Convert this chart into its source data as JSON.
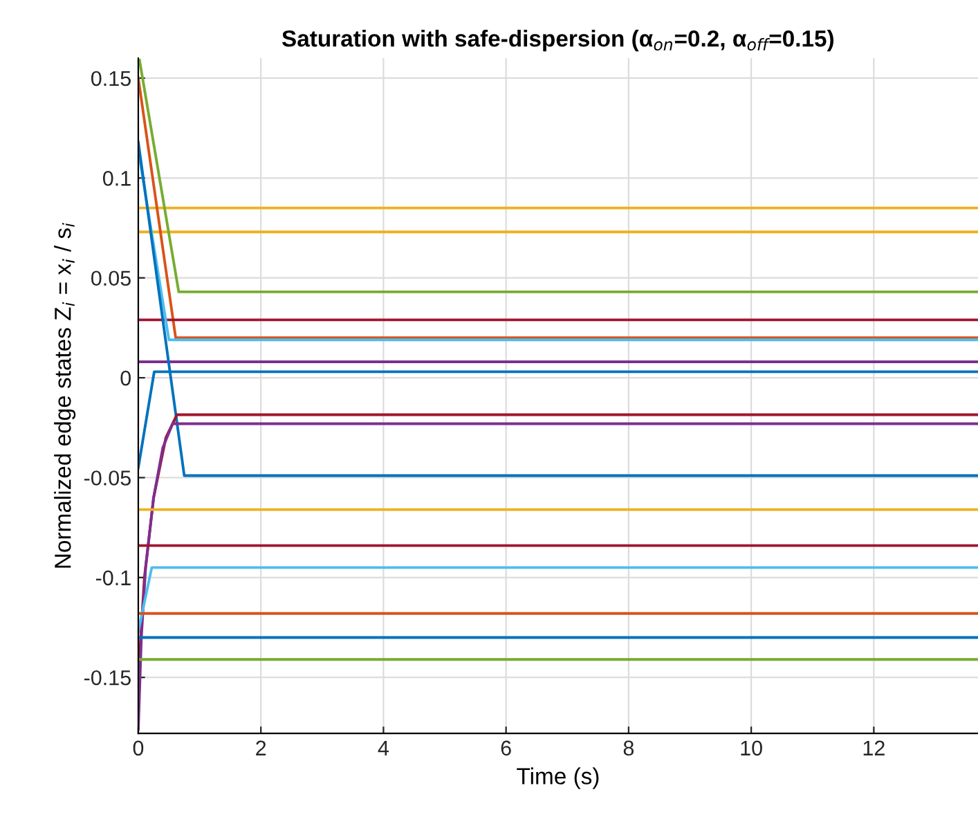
{
  "chart_data": {
    "type": "line",
    "title": "Saturation with safe-dispersion (α$_{on}$=0.2, α$_{off}$=0.15)",
    "xlabel": "Time (s)",
    "ylabel": "Normalized edge states Z$_{i}$ = x$_{i}$ / s$_{i}$",
    "xlim": [
      0,
      13.7
    ],
    "ylim": [
      -0.178,
      0.16
    ],
    "xticks": [
      0,
      2,
      4,
      6,
      8,
      10,
      12
    ],
    "yticks": [
      -0.15,
      -0.1,
      -0.05,
      0,
      0.05,
      0.1,
      0.15
    ],
    "grid": true,
    "legend": false,
    "line_style": "solid",
    "marker": "none",
    "series": [
      {
        "color": "#edb120",
        "x": [
          0,
          13.7
        ],
        "values": [
          0.085,
          0.085
        ]
      },
      {
        "color": "#edb120",
        "x": [
          0,
          13.7
        ],
        "values": [
          0.073,
          0.073
        ]
      },
      {
        "color": "#77ac30",
        "x": [
          0.02,
          0.66,
          13.7
        ],
        "values": [
          0.159,
          0.043,
          0.043
        ]
      },
      {
        "color": "#d95319",
        "x": [
          0,
          0.61,
          13.7
        ],
        "values": [
          0.15,
          0.02,
          0.02
        ]
      },
      {
        "color": "#a2142f",
        "x": [
          0,
          13.7
        ],
        "values": [
          0.029,
          0.029
        ]
      },
      {
        "color": "#4dbeee",
        "x": [
          0,
          0.5,
          13.7
        ],
        "values": [
          0.114,
          0.019,
          0.019
        ]
      },
      {
        "color": "#7e2f8e",
        "x": [
          0,
          13.7
        ],
        "values": [
          0.008,
          0.008
        ]
      },
      {
        "color": "#0072bd",
        "x": [
          0,
          0.26,
          13.7
        ],
        "values": [
          -0.045,
          0.003,
          0.003
        ]
      },
      {
        "color": "#0072bd",
        "x": [
          0,
          0.75,
          13.7
        ],
        "values": [
          0.118,
          -0.049,
          -0.049
        ]
      },
      {
        "color": "#a2142f",
        "x": [
          0,
          0.1,
          0.25,
          0.45,
          0.63,
          13.7
        ],
        "values": [
          -0.15,
          -0.1,
          -0.06,
          -0.03,
          -0.0185,
          -0.0185
        ]
      },
      {
        "color": "#7e2f8e",
        "x": [
          0,
          0.05,
          0.12,
          0.25,
          0.4,
          0.56,
          13.7
        ],
        "values": [
          -0.176,
          -0.13,
          -0.095,
          -0.06,
          -0.035,
          -0.023,
          -0.023
        ]
      },
      {
        "color": "#edb120",
        "x": [
          0,
          13.7
        ],
        "values": [
          -0.066,
          -0.066
        ]
      },
      {
        "color": "#a2142f",
        "x": [
          0,
          13.7
        ],
        "values": [
          -0.084,
          -0.084
        ]
      },
      {
        "color": "#4dbeee",
        "x": [
          0,
          0.22,
          13.7
        ],
        "values": [
          -0.127,
          -0.095,
          -0.095
        ]
      },
      {
        "color": "#d95319",
        "x": [
          0,
          13.7
        ],
        "values": [
          -0.118,
          -0.118
        ]
      },
      {
        "color": "#0072bd",
        "x": [
          0,
          13.7
        ],
        "values": [
          -0.13,
          -0.13
        ]
      },
      {
        "color": "#77ac30",
        "x": [
          0,
          13.7
        ],
        "values": [
          -0.141,
          -0.141
        ]
      }
    ]
  }
}
